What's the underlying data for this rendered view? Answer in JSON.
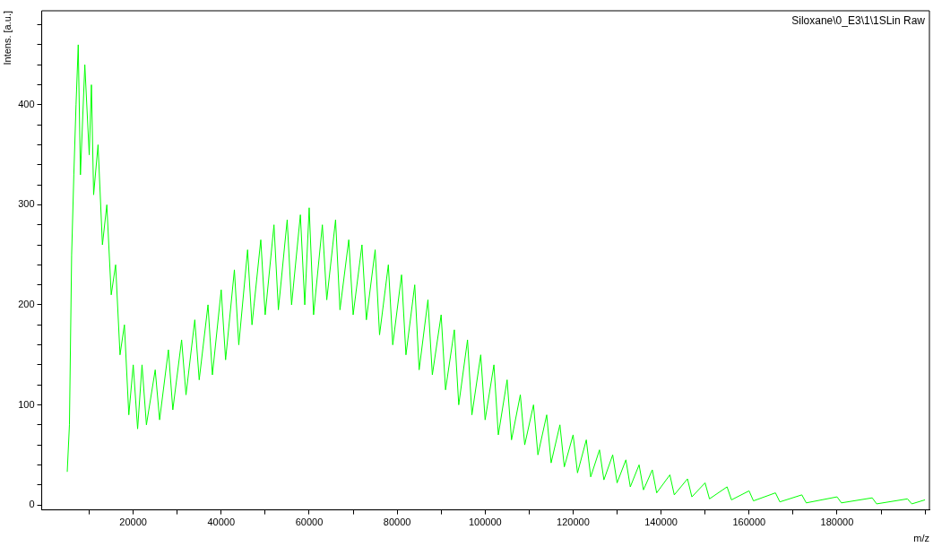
{
  "chart_data": {
    "type": "line",
    "title": "Siloxane\\0_E3\\1\\1SLin Raw",
    "xlabel": "m/z",
    "ylabel": "Intens. [a.u.]",
    "xlim": [
      -800,
      201000
    ],
    "ylim": [
      -5,
      494
    ],
    "xticks": [
      {
        "value": 10000,
        "label": null
      },
      20000,
      {
        "value": 30000,
        "label": null
      },
      40000,
      {
        "value": 50000,
        "label": null
      },
      60000,
      {
        "value": 70000,
        "label": null
      },
      80000,
      {
        "value": 90000,
        "label": null
      },
      100000,
      {
        "value": 110000,
        "label": null
      },
      120000,
      {
        "value": 130000,
        "label": null
      },
      140000,
      {
        "value": 150000,
        "label": null
      },
      160000,
      {
        "value": 170000,
        "label": null
      },
      180000,
      {
        "value": 190000,
        "label": null
      },
      {
        "value": 200000,
        "label": null
      }
    ],
    "yticks": [
      0,
      {
        "value": 20,
        "label": null
      },
      {
        "value": 40,
        "label": null
      },
      {
        "value": 60,
        "label": null
      },
      {
        "value": 80,
        "label": null
      },
      100,
      {
        "value": 120,
        "label": null
      },
      {
        "value": 140,
        "label": null
      },
      {
        "value": 160,
        "label": null
      },
      {
        "value": 180,
        "label": null
      },
      200,
      {
        "value": 220,
        "label": null
      },
      {
        "value": 240,
        "label": null
      },
      {
        "value": 260,
        "label": null
      },
      {
        "value": 280,
        "label": null
      },
      300,
      {
        "value": 320,
        "label": null
      },
      {
        "value": 340,
        "label": null
      },
      {
        "value": 360,
        "label": null
      },
      {
        "value": 380,
        "label": null
      },
      400,
      {
        "value": 420,
        "label": null
      },
      {
        "value": 440,
        "label": null
      },
      {
        "value": 460,
        "label": null
      },
      {
        "value": 480,
        "label": null
      }
    ],
    "grid": false,
    "legend": false,
    "marker": "none",
    "line_style": "solid",
    "series": [
      {
        "color": "#00ff00",
        "x": [
          5000,
          5500,
          6000,
          6500,
          7000,
          7500,
          8000,
          9000,
          10000,
          10500,
          11000,
          12000,
          13000,
          14000,
          15000,
          16000,
          17000,
          18000,
          19000,
          20000,
          21000,
          22000,
          23000,
          25000,
          26000,
          28000,
          29000,
          31000,
          32000,
          34000,
          35000,
          37000,
          38000,
          40000,
          41000,
          43000,
          44000,
          46000,
          47000,
          49000,
          50000,
          52000,
          53000,
          55000,
          56000,
          58000,
          59000,
          60000,
          61000,
          63000,
          64000,
          66000,
          67000,
          69000,
          70000,
          72000,
          73000,
          75000,
          76000,
          78000,
          79000,
          81000,
          82000,
          84000,
          85000,
          87000,
          88000,
          90000,
          91000,
          93000,
          94000,
          96000,
          97000,
          99000,
          100000,
          102000,
          103000,
          105000,
          106000,
          108000,
          109000,
          111000,
          112000,
          114000,
          115000,
          117000,
          118000,
          120000,
          121000,
          123000,
          124000,
          126000,
          127000,
          129000,
          130000,
          132000,
          133000,
          135000,
          136000,
          138000,
          139000,
          142000,
          143000,
          146000,
          147000,
          150000,
          151000,
          155000,
          156000,
          160000,
          161000,
          166000,
          167000,
          172000,
          173000,
          180000,
          181000,
          188000,
          189000,
          196000,
          197000,
          200000
        ],
        "values": [
          33,
          80,
          250,
          330,
          400,
          460,
          330,
          440,
          350,
          420,
          310,
          360,
          260,
          300,
          210,
          240,
          150,
          180,
          90,
          140,
          76,
          140,
          80,
          135,
          85,
          155,
          95,
          165,
          110,
          185,
          125,
          200,
          130,
          215,
          145,
          235,
          160,
          255,
          180,
          265,
          190,
          280,
          195,
          285,
          200,
          290,
          200,
          297,
          190,
          280,
          205,
          285,
          195,
          265,
          190,
          260,
          185,
          255,
          170,
          240,
          160,
          230,
          150,
          220,
          135,
          205,
          130,
          190,
          115,
          175,
          100,
          165,
          90,
          150,
          85,
          140,
          70,
          125,
          65,
          110,
          60,
          100,
          50,
          90,
          42,
          80,
          38,
          70,
          32,
          65,
          28,
          55,
          25,
          50,
          22,
          45,
          18,
          40,
          15,
          35,
          12,
          30,
          10,
          26,
          8,
          22,
          6,
          18,
          5,
          14,
          4,
          12,
          3,
          10,
          2,
          8,
          2,
          7,
          1,
          6,
          1,
          5
        ]
      }
    ]
  }
}
